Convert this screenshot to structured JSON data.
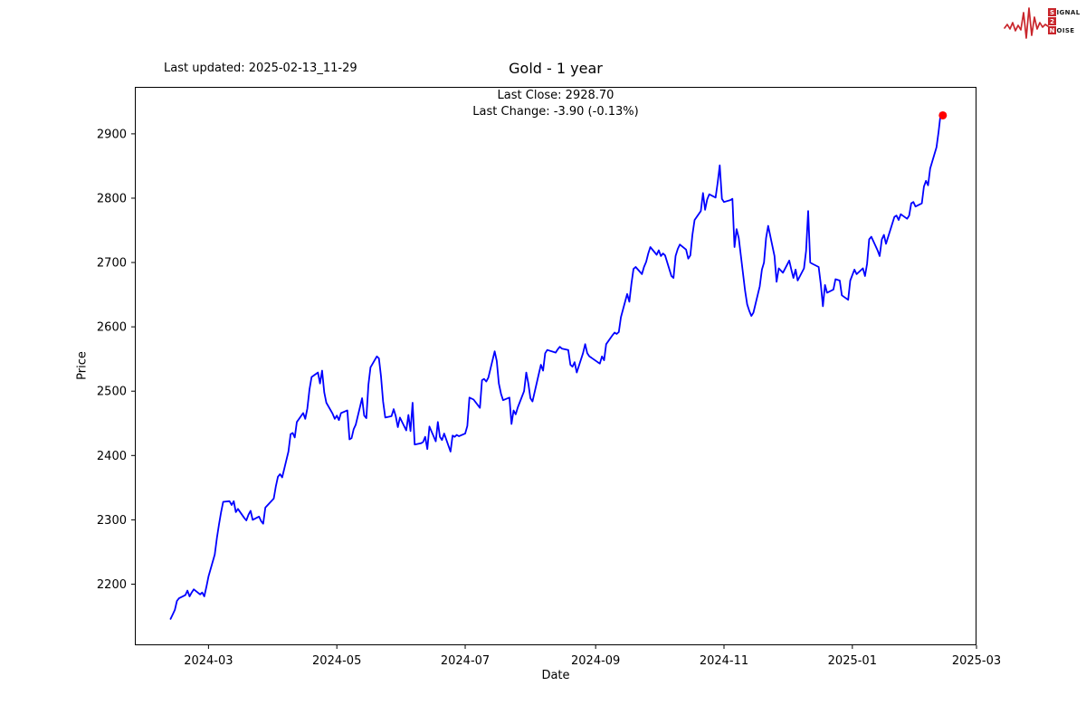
{
  "header": {
    "last_updated": "Last updated: 2025-02-13_11-29",
    "title": "Gold - 1 year"
  },
  "annotations": {
    "last_close": "Last Close: 2928.70",
    "last_change": "Last Change: -3.90 (-0.13%)"
  },
  "logo": {
    "accent": "#c9252b",
    "box1": "S",
    "rest1": "IGNAL",
    "box2": "2",
    "rest2": "",
    "box3": "N",
    "rest3": "OISE"
  },
  "chart_data": {
    "type": "line",
    "title": "Gold - 1 year",
    "xlabel": "Date",
    "ylabel": "Price",
    "legend": "none",
    "grid": false,
    "line_color": "#0000ff",
    "marker_color": "#ff0000",
    "last_close": 2928.7,
    "last_change": -3.9,
    "last_change_pct": -0.13,
    "x_ticks": [
      "2024-03",
      "2024-05",
      "2024-07",
      "2024-09",
      "2024-11",
      "2025-01",
      "2025-03"
    ],
    "y_ticks": [
      2200,
      2300,
      2400,
      2500,
      2600,
      2700,
      2800,
      2900
    ],
    "xlim": [
      "2024-01-26",
      "2025-03-01"
    ],
    "ylim": [
      2105,
      2973
    ],
    "series": [
      {
        "name": "Gold",
        "points": [
          [
            "2024-02-12",
            2146
          ],
          [
            "2024-02-13",
            2153
          ],
          [
            "2024-02-14",
            2160
          ],
          [
            "2024-02-15",
            2174
          ],
          [
            "2024-02-16",
            2178
          ],
          [
            "2024-02-19",
            2183
          ],
          [
            "2024-02-20",
            2190
          ],
          [
            "2024-02-21",
            2181
          ],
          [
            "2024-02-22",
            2187
          ],
          [
            "2024-02-23",
            2192
          ],
          [
            "2024-02-26",
            2184
          ],
          [
            "2024-02-27",
            2187
          ],
          [
            "2024-02-28",
            2181
          ],
          [
            "2024-02-29",
            2196
          ],
          [
            "2024-03-01",
            2212
          ],
          [
            "2024-03-04",
            2246
          ],
          [
            "2024-03-05",
            2272
          ],
          [
            "2024-03-06",
            2293
          ],
          [
            "2024-03-07",
            2312
          ],
          [
            "2024-03-08",
            2328
          ],
          [
            "2024-03-11",
            2329
          ],
          [
            "2024-03-12",
            2323
          ],
          [
            "2024-03-13",
            2329
          ],
          [
            "2024-03-14",
            2312
          ],
          [
            "2024-03-15",
            2317
          ],
          [
            "2024-03-18",
            2303
          ],
          [
            "2024-03-19",
            2299
          ],
          [
            "2024-03-20",
            2308
          ],
          [
            "2024-03-21",
            2314
          ],
          [
            "2024-03-22",
            2300
          ],
          [
            "2024-03-25",
            2305
          ],
          [
            "2024-03-26",
            2298
          ],
          [
            "2024-03-27",
            2294
          ],
          [
            "2024-03-28",
            2319
          ],
          [
            "2024-04-01",
            2333
          ],
          [
            "2024-04-02",
            2352
          ],
          [
            "2024-04-03",
            2367
          ],
          [
            "2024-04-04",
            2371
          ],
          [
            "2024-04-05",
            2366
          ],
          [
            "2024-04-08",
            2406
          ],
          [
            "2024-04-09",
            2433
          ],
          [
            "2024-04-10",
            2435
          ],
          [
            "2024-04-11",
            2428
          ],
          [
            "2024-04-12",
            2452
          ],
          [
            "2024-04-15",
            2466
          ],
          [
            "2024-04-16",
            2457
          ],
          [
            "2024-04-17",
            2473
          ],
          [
            "2024-04-18",
            2503
          ],
          [
            "2024-04-19",
            2522
          ],
          [
            "2024-04-22",
            2529
          ],
          [
            "2024-04-23",
            2512
          ],
          [
            "2024-04-24",
            2532
          ],
          [
            "2024-04-25",
            2498
          ],
          [
            "2024-04-26",
            2482
          ],
          [
            "2024-04-29",
            2465
          ],
          [
            "2024-04-30",
            2457
          ],
          [
            "2024-05-01",
            2462
          ],
          [
            "2024-05-02",
            2455
          ],
          [
            "2024-05-03",
            2466
          ],
          [
            "2024-05-06",
            2470
          ],
          [
            "2024-05-07",
            2425
          ],
          [
            "2024-05-08",
            2427
          ],
          [
            "2024-05-09",
            2441
          ],
          [
            "2024-05-10",
            2448
          ],
          [
            "2024-05-13",
            2489
          ],
          [
            "2024-05-14",
            2462
          ],
          [
            "2024-05-15",
            2458
          ],
          [
            "2024-05-16",
            2510
          ],
          [
            "2024-05-17",
            2537
          ],
          [
            "2024-05-20",
            2554
          ],
          [
            "2024-05-21",
            2551
          ],
          [
            "2024-05-22",
            2523
          ],
          [
            "2024-05-23",
            2484
          ],
          [
            "2024-05-24",
            2459
          ],
          [
            "2024-05-27",
            2461
          ],
          [
            "2024-05-28",
            2472
          ],
          [
            "2024-05-29",
            2461
          ],
          [
            "2024-05-30",
            2444
          ],
          [
            "2024-05-31",
            2459
          ],
          [
            "2024-06-03",
            2439
          ],
          [
            "2024-06-04",
            2463
          ],
          [
            "2024-06-05",
            2438
          ],
          [
            "2024-06-06",
            2482
          ],
          [
            "2024-06-07",
            2417
          ],
          [
            "2024-06-10",
            2419
          ],
          [
            "2024-06-11",
            2421
          ],
          [
            "2024-06-12",
            2429
          ],
          [
            "2024-06-13",
            2410
          ],
          [
            "2024-06-14",
            2445
          ],
          [
            "2024-06-17",
            2422
          ],
          [
            "2024-06-18",
            2452
          ],
          [
            "2024-06-19",
            2429
          ],
          [
            "2024-06-20",
            2424
          ],
          [
            "2024-06-21",
            2434
          ],
          [
            "2024-06-24",
            2406
          ],
          [
            "2024-06-25",
            2431
          ],
          [
            "2024-06-26",
            2429
          ],
          [
            "2024-06-27",
            2432
          ],
          [
            "2024-06-28",
            2430
          ],
          [
            "2024-07-01",
            2434
          ],
          [
            "2024-07-02",
            2446
          ],
          [
            "2024-07-03",
            2490
          ],
          [
            "2024-07-05",
            2487
          ],
          [
            "2024-07-08",
            2474
          ],
          [
            "2024-07-09",
            2517
          ],
          [
            "2024-07-10",
            2519
          ],
          [
            "2024-07-11",
            2515
          ],
          [
            "2024-07-12",
            2521
          ],
          [
            "2024-07-15",
            2562
          ],
          [
            "2024-07-16",
            2547
          ],
          [
            "2024-07-17",
            2512
          ],
          [
            "2024-07-18",
            2496
          ],
          [
            "2024-07-19",
            2486
          ],
          [
            "2024-07-22",
            2490
          ],
          [
            "2024-07-23",
            2449
          ],
          [
            "2024-07-24",
            2470
          ],
          [
            "2024-07-25",
            2464
          ],
          [
            "2024-07-26",
            2475
          ],
          [
            "2024-07-29",
            2500
          ],
          [
            "2024-07-30",
            2529
          ],
          [
            "2024-07-31",
            2512
          ],
          [
            "2024-08-01",
            2489
          ],
          [
            "2024-08-02",
            2484
          ],
          [
            "2024-08-05",
            2527
          ],
          [
            "2024-08-06",
            2541
          ],
          [
            "2024-08-07",
            2532
          ],
          [
            "2024-08-08",
            2559
          ],
          [
            "2024-08-09",
            2564
          ],
          [
            "2024-08-12",
            2561
          ],
          [
            "2024-08-13",
            2560
          ],
          [
            "2024-08-14",
            2565
          ],
          [
            "2024-08-15",
            2569
          ],
          [
            "2024-08-16",
            2566
          ],
          [
            "2024-08-19",
            2564
          ],
          [
            "2024-08-20",
            2541
          ],
          [
            "2024-08-21",
            2538
          ],
          [
            "2024-08-22",
            2545
          ],
          [
            "2024-08-23",
            2529
          ],
          [
            "2024-08-26",
            2559
          ],
          [
            "2024-08-27",
            2573
          ],
          [
            "2024-08-28",
            2559
          ],
          [
            "2024-08-29",
            2554
          ],
          [
            "2024-08-30",
            2552
          ],
          [
            "2024-09-02",
            2545
          ],
          [
            "2024-09-03",
            2543
          ],
          [
            "2024-09-04",
            2554
          ],
          [
            "2024-09-05",
            2548
          ],
          [
            "2024-09-06",
            2573
          ],
          [
            "2024-09-09",
            2587
          ],
          [
            "2024-09-10",
            2591
          ],
          [
            "2024-09-11",
            2589
          ],
          [
            "2024-09-12",
            2592
          ],
          [
            "2024-09-13",
            2615
          ],
          [
            "2024-09-16",
            2651
          ],
          [
            "2024-09-17",
            2639
          ],
          [
            "2024-09-18",
            2667
          ],
          [
            "2024-09-19",
            2690
          ],
          [
            "2024-09-20",
            2693
          ],
          [
            "2024-09-23",
            2682
          ],
          [
            "2024-09-24",
            2693
          ],
          [
            "2024-09-25",
            2701
          ],
          [
            "2024-09-26",
            2714
          ],
          [
            "2024-09-27",
            2724
          ],
          [
            "2024-09-30",
            2712
          ],
          [
            "2024-10-01",
            2719
          ],
          [
            "2024-10-02",
            2710
          ],
          [
            "2024-10-03",
            2714
          ],
          [
            "2024-10-04",
            2711
          ],
          [
            "2024-10-07",
            2679
          ],
          [
            "2024-10-08",
            2676
          ],
          [
            "2024-10-09",
            2710
          ],
          [
            "2024-10-10",
            2721
          ],
          [
            "2024-10-11",
            2728
          ],
          [
            "2024-10-14",
            2720
          ],
          [
            "2024-10-15",
            2706
          ],
          [
            "2024-10-16",
            2711
          ],
          [
            "2024-10-17",
            2743
          ],
          [
            "2024-10-18",
            2766
          ],
          [
            "2024-10-21",
            2780
          ],
          [
            "2024-10-22",
            2808
          ],
          [
            "2024-10-23",
            2782
          ],
          [
            "2024-10-24",
            2798
          ],
          [
            "2024-10-25",
            2806
          ],
          [
            "2024-10-28",
            2801
          ],
          [
            "2024-10-29",
            2824
          ],
          [
            "2024-10-30",
            2851
          ],
          [
            "2024-10-31",
            2799
          ],
          [
            "2024-11-01",
            2794
          ],
          [
            "2024-11-04",
            2797
          ],
          [
            "2024-11-05",
            2799
          ],
          [
            "2024-11-06",
            2724
          ],
          [
            "2024-11-07",
            2752
          ],
          [
            "2024-11-08",
            2738
          ],
          [
            "2024-11-11",
            2656
          ],
          [
            "2024-11-12",
            2635
          ],
          [
            "2024-11-13",
            2625
          ],
          [
            "2024-11-14",
            2617
          ],
          [
            "2024-11-15",
            2622
          ],
          [
            "2024-11-18",
            2663
          ],
          [
            "2024-11-19",
            2689
          ],
          [
            "2024-11-20",
            2700
          ],
          [
            "2024-11-21",
            2738
          ],
          [
            "2024-11-22",
            2757
          ],
          [
            "2024-11-25",
            2710
          ],
          [
            "2024-11-26",
            2670
          ],
          [
            "2024-11-27",
            2691
          ],
          [
            "2024-11-29",
            2684
          ],
          [
            "2024-12-02",
            2703
          ],
          [
            "2024-12-03",
            2689
          ],
          [
            "2024-12-04",
            2676
          ],
          [
            "2024-12-05",
            2689
          ],
          [
            "2024-12-06",
            2672
          ],
          [
            "2024-12-09",
            2691
          ],
          [
            "2024-12-10",
            2718
          ],
          [
            "2024-12-11",
            2780
          ],
          [
            "2024-12-12",
            2700
          ],
          [
            "2024-12-13",
            2698
          ],
          [
            "2024-12-16",
            2693
          ],
          [
            "2024-12-17",
            2667
          ],
          [
            "2024-12-18",
            2632
          ],
          [
            "2024-12-19",
            2665
          ],
          [
            "2024-12-20",
            2653
          ],
          [
            "2024-12-23",
            2658
          ],
          [
            "2024-12-24",
            2674
          ],
          [
            "2024-12-26",
            2672
          ],
          [
            "2024-12-27",
            2649
          ],
          [
            "2024-12-30",
            2642
          ],
          [
            "2024-12-31",
            2672
          ],
          [
            "2025-01-02",
            2689
          ],
          [
            "2025-01-03",
            2682
          ],
          [
            "2025-01-06",
            2691
          ],
          [
            "2025-01-07",
            2679
          ],
          [
            "2025-01-08",
            2698
          ],
          [
            "2025-01-09",
            2736
          ],
          [
            "2025-01-10",
            2740
          ],
          [
            "2025-01-13",
            2719
          ],
          [
            "2025-01-14",
            2710
          ],
          [
            "2025-01-15",
            2736
          ],
          [
            "2025-01-16",
            2743
          ],
          [
            "2025-01-17",
            2729
          ],
          [
            "2025-01-21",
            2771
          ],
          [
            "2025-01-22",
            2773
          ],
          [
            "2025-01-23",
            2766
          ],
          [
            "2025-01-24",
            2775
          ],
          [
            "2025-01-27",
            2768
          ],
          [
            "2025-01-28",
            2773
          ],
          [
            "2025-01-29",
            2792
          ],
          [
            "2025-01-30",
            2794
          ],
          [
            "2025-01-31",
            2787
          ],
          [
            "2025-02-03",
            2792
          ],
          [
            "2025-02-04",
            2818
          ],
          [
            "2025-02-05",
            2827
          ],
          [
            "2025-02-06",
            2820
          ],
          [
            "2025-02-07",
            2846
          ],
          [
            "2025-02-10",
            2879
          ],
          [
            "2025-02-11",
            2903
          ],
          [
            "2025-02-12",
            2932.6
          ],
          [
            "2025-02-13",
            2928.7
          ]
        ]
      }
    ]
  }
}
